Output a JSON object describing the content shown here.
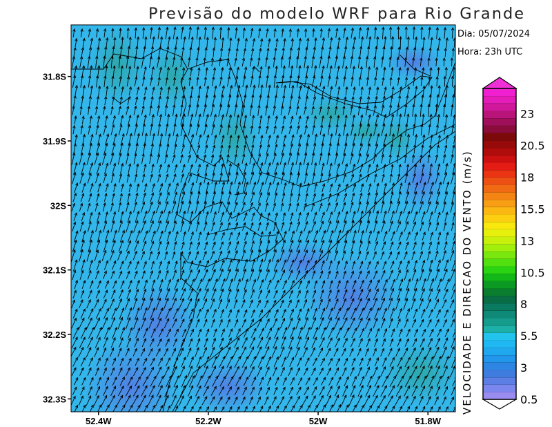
{
  "title": "Previsão do modelo WRF para Rio Grande",
  "info": {
    "day": "Dia: 05/07/2024",
    "hour": "Hora: 23h UTC"
  },
  "map": {
    "lon_range": [
      -52.45,
      -51.75
    ],
    "lat_range": [
      -32.32,
      -31.72
    ],
    "lon_ticks": [
      {
        "value": -52.4,
        "label": "52.4W"
      },
      {
        "value": -52.2,
        "label": "52.2W"
      },
      {
        "value": -52.0,
        "label": "52W"
      },
      {
        "value": -51.8,
        "label": "51.8W"
      }
    ],
    "lat_ticks": [
      {
        "value": -31.8,
        "label": "31.8S"
      },
      {
        "value": -31.9,
        "label": "31.9S"
      },
      {
        "value": -32.0,
        "label": "32S"
      },
      {
        "value": -32.1,
        "label": "32.1S"
      },
      {
        "value": -32.2,
        "label": "32.2S"
      },
      {
        "value": -32.3,
        "label": "32.3S"
      }
    ],
    "background_color": "#33b6ea",
    "wind_field": "southerly to south-southwesterly, approx. 2-5 m/s"
  },
  "colorbar": {
    "label": "VELOCIDADE E DIRECAO DO VENTO (m/s)",
    "min": 0.5,
    "max": 25,
    "tick_labels": [
      "0.5",
      "3",
      "5.5",
      "8",
      "10.5",
      "13",
      "15.5",
      "18",
      "20.5",
      "23"
    ],
    "colors": [
      "#9b8cf0",
      "#7b86ee",
      "#5c7fe6",
      "#3f7cdf",
      "#2e86e4",
      "#2196ea",
      "#20a8ef",
      "#1fb8f2",
      "#22c4ee",
      "#1cb0a8",
      "#169c8c",
      "#0f8a78",
      "#0a7a60",
      "#086c44",
      "#0a7e2e",
      "#0c9a22",
      "#12b818",
      "#2ad412",
      "#52e010",
      "#7ae80e",
      "#a2ee0c",
      "#c8f00c",
      "#e6f00c",
      "#f8e80e",
      "#fcd010",
      "#fcb812",
      "#f89e14",
      "#f48414",
      "#f06a14",
      "#ec5014",
      "#ea3414",
      "#e41c14",
      "#cc1010",
      "#b00c0c",
      "#960a0a",
      "#7c0a0a",
      "#8a0c3a",
      "#a0105a",
      "#b8147a",
      "#d0189a",
      "#e41cb8",
      "#f020d0"
    ]
  }
}
